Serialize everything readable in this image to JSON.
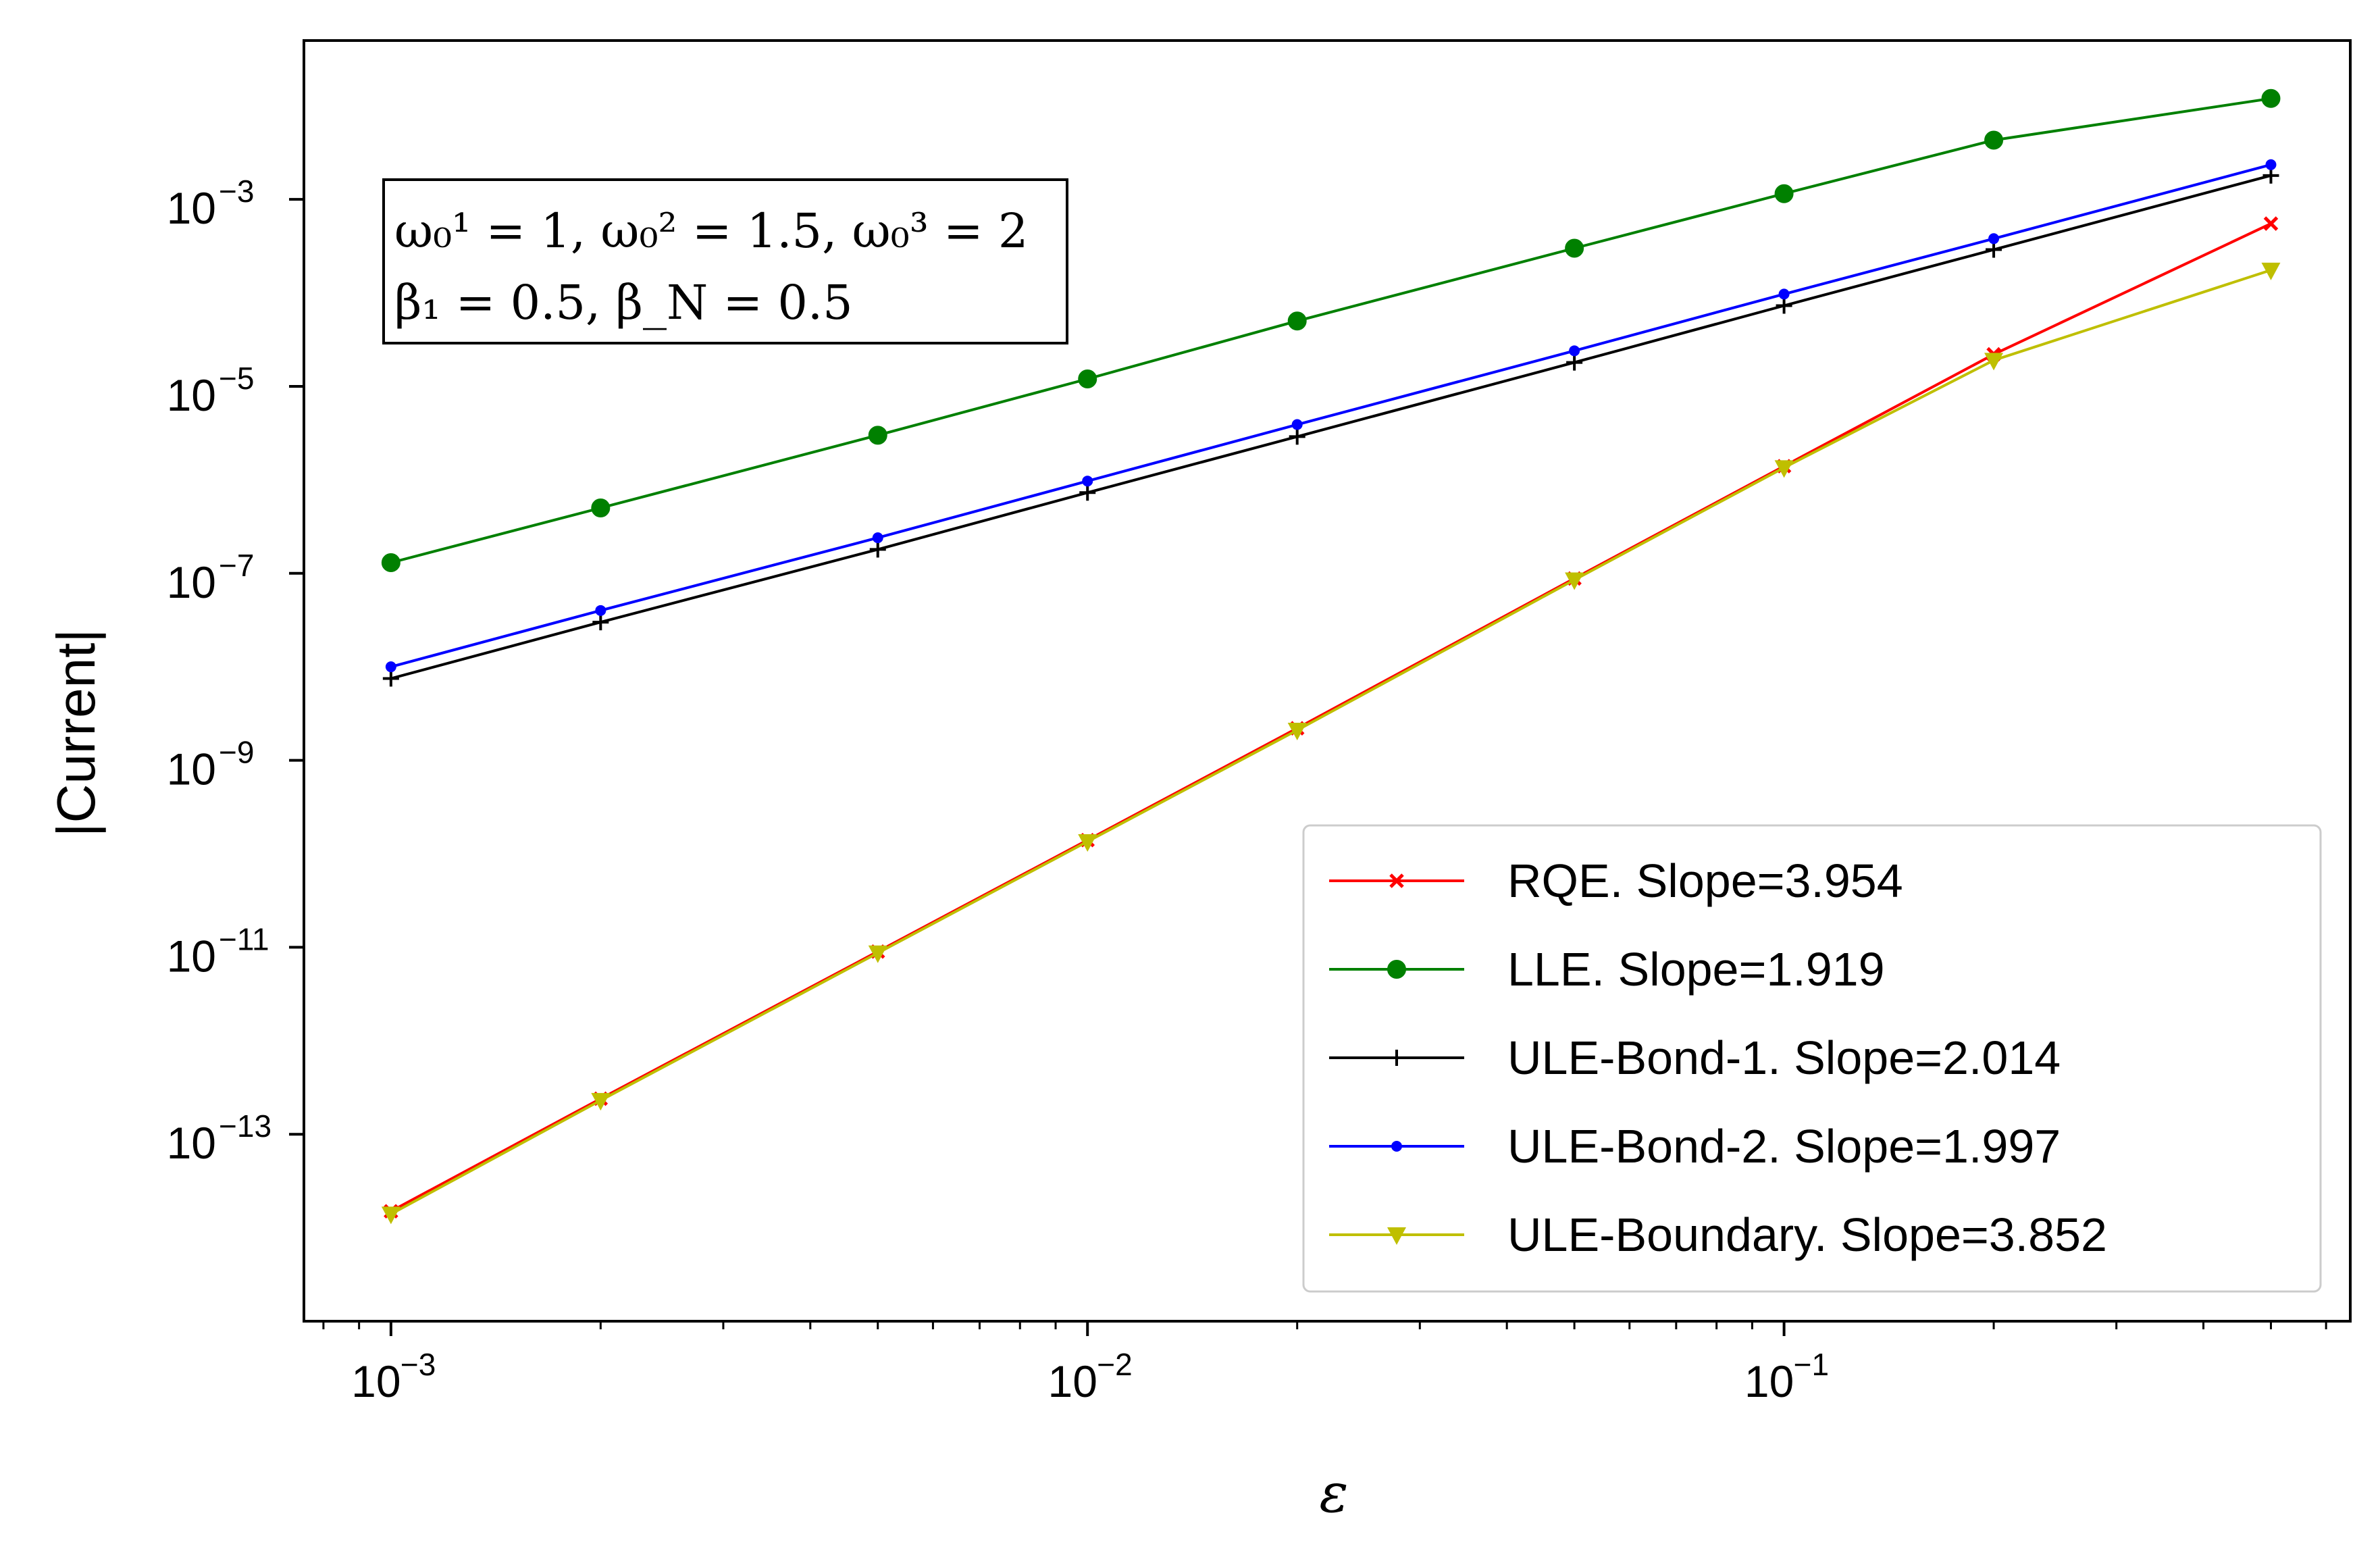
{
  "chart_data": {
    "type": "line",
    "xscale": "log",
    "yscale": "log",
    "xlabel": "ε",
    "ylabel": "|Current|",
    "xlim": [
      0.00075,
      0.65
    ],
    "ylim": [
      1e-15,
      0.05
    ],
    "x_ticks": [
      {
        "value": 0.001,
        "base": "10",
        "exp": "−3"
      },
      {
        "value": 0.01,
        "base": "10",
        "exp": "−2"
      },
      {
        "value": 0.1,
        "base": "10",
        "exp": "−1"
      }
    ],
    "y_ticks": [
      {
        "value": 1e-13,
        "base": "10",
        "exp": "−13"
      },
      {
        "value": 1e-11,
        "base": "10",
        "exp": "−11"
      },
      {
        "value": 1e-09,
        "base": "10",
        "exp": "−9"
      },
      {
        "value": 1e-07,
        "base": "10",
        "exp": "−7"
      },
      {
        "value": 1e-05,
        "base": "10",
        "exp": "−5"
      },
      {
        "value": 0.001,
        "base": "10",
        "exp": "−3"
      }
    ],
    "annotation": {
      "line1": "ω₀¹ = 1, ω₀² = 1.5, ω₀³ = 2",
      "line2": "β₁ = 0.5, β_N = 0.5"
    },
    "x": [
      0.001,
      0.002,
      0.005,
      0.01,
      0.02,
      0.05,
      0.1,
      0.2,
      0.5
    ],
    "series": [
      {
        "name": "RQE. Slope=3.954",
        "color": "#ff0000",
        "marker": "x",
        "values": [
          1.5e-14,
          2.4e-13,
          9e-12,
          1.4e-10,
          2.2e-09,
          8.8e-08,
          1.4e-06,
          2.2e-05,
          0.00055
        ]
      },
      {
        "name": "LLE. Slope=1.919",
        "color": "#008000",
        "marker": "circle",
        "values": [
          1.3e-07,
          5e-07,
          3e-06,
          1.2e-05,
          5e-05,
          0.0003,
          0.00115,
          0.0043,
          0.012
        ]
      },
      {
        "name": "ULE-Bond-1. Slope=2.014",
        "color": "#000000",
        "marker": "plus",
        "values": [
          7.5e-09,
          3e-08,
          1.8e-07,
          7.3e-07,
          2.9e-06,
          1.8e-05,
          7.3e-05,
          0.00029,
          0.0018
        ]
      },
      {
        "name": "ULE-Bond-2. Slope=1.997",
        "color": "#0000ff",
        "marker": "dot",
        "values": [
          1e-08,
          4e-08,
          2.4e-07,
          9.7e-07,
          3.9e-06,
          2.4e-05,
          9.7e-05,
          0.00038,
          0.00235
        ]
      },
      {
        "name": "ULE-Boundary. Slope=3.852",
        "color": "#bfbf00",
        "marker": "triangle_down",
        "values": [
          1.4e-14,
          2.3e-13,
          8.7e-12,
          1.35e-10,
          2.1e-09,
          8.5e-08,
          1.35e-06,
          1.9e-05,
          0.000175
        ]
      }
    ],
    "legend_position": "lower-right",
    "grid": false
  }
}
